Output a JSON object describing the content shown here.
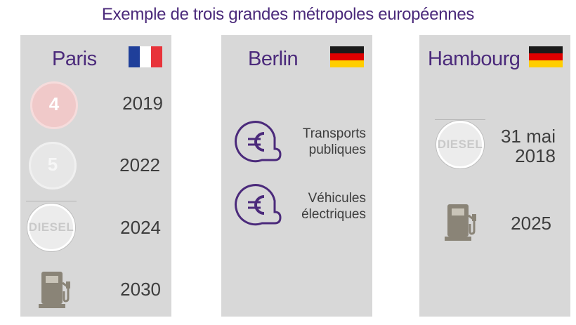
{
  "title": "Exemple de trois grandes métropoles européennes",
  "colors": {
    "title": "#4b2a7b",
    "panel": "#d8d8d8",
    "text": "#3d3d3d",
    "euro_icon": "#4b2a7b",
    "pump_icon": "#8a8477"
  },
  "paris": {
    "city": "Paris",
    "flag": "france-flag",
    "rows": [
      {
        "icon": "crit-air-4-sticker-icon",
        "year": "2019",
        "sticker_number": "4"
      },
      {
        "icon": "crit-air-5-sticker-icon",
        "year": "2022",
        "sticker_number": "5"
      },
      {
        "icon": "diesel-sticker-icon",
        "year": "2024",
        "sticker_text": "DIESEL"
      },
      {
        "icon": "fuel-pump-icon",
        "year": "2030"
      }
    ]
  },
  "berlin": {
    "city": "Berlin",
    "flag": "germany-flag",
    "rows": [
      {
        "icon": "euro-icon",
        "line1": "Transports",
        "line2": "publiques"
      },
      {
        "icon": "euro-icon",
        "line1": "Véhicules",
        "line2": "électriques"
      }
    ]
  },
  "hambourg": {
    "city": "Hambourg",
    "flag": "germany-flag",
    "rows": [
      {
        "icon": "diesel-sticker-icon",
        "sticker_text": "DIESEL",
        "line1": "31 mai",
        "line2": "2018"
      },
      {
        "icon": "fuel-pump-icon",
        "year": "2025"
      }
    ]
  }
}
